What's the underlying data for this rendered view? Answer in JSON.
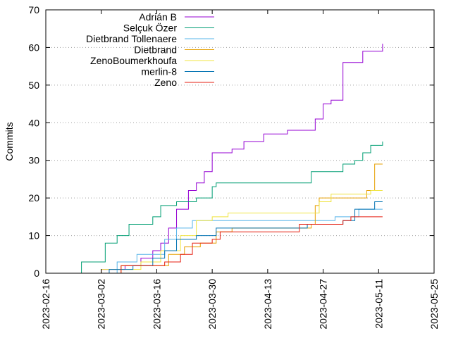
{
  "chart_data": {
    "type": "line",
    "title": "",
    "xlabel": "",
    "ylabel": "Commits",
    "ylim": [
      0,
      70
    ],
    "xlim": [
      "2023-02-16",
      "2023-05-25"
    ],
    "x_ticks": [
      "2023-02-16",
      "2023-03-02",
      "2023-03-16",
      "2023-03-30",
      "2023-04-13",
      "2023-04-27",
      "2023-05-11",
      "2023-05-25"
    ],
    "y_ticks": [
      0,
      10,
      20,
      30,
      40,
      50,
      60,
      70
    ],
    "grid": "horizontal dotted",
    "legend_position": "top-left",
    "series": [
      {
        "name": "Adrián B",
        "color": "#9400d3",
        "points": [
          [
            "2023-02-28",
            0
          ],
          [
            "2023-03-02",
            1
          ],
          [
            "2023-03-06",
            1
          ],
          [
            "2023-03-08",
            2
          ],
          [
            "2023-03-12",
            4
          ],
          [
            "2023-03-15",
            6
          ],
          [
            "2023-03-17",
            8
          ],
          [
            "2023-03-19",
            12
          ],
          [
            "2023-03-21",
            17
          ],
          [
            "2023-03-24",
            22
          ],
          [
            "2023-03-26",
            24
          ],
          [
            "2023-03-28",
            27
          ],
          [
            "2023-03-30",
            32
          ],
          [
            "2023-04-04",
            33
          ],
          [
            "2023-04-07",
            35
          ],
          [
            "2023-04-12",
            37
          ],
          [
            "2023-04-18",
            38
          ],
          [
            "2023-04-23",
            38
          ],
          [
            "2023-04-25",
            41
          ],
          [
            "2023-04-27",
            45
          ],
          [
            "2023-04-29",
            46
          ],
          [
            "2023-05-02",
            56
          ],
          [
            "2023-05-06",
            56
          ],
          [
            "2023-05-07",
            59
          ],
          [
            "2023-05-11",
            59
          ],
          [
            "2023-05-12",
            61
          ]
        ]
      },
      {
        "name": "Selçuk Özer",
        "color": "#009e73",
        "points": [
          [
            "2023-02-25",
            0
          ],
          [
            "2023-02-25",
            3
          ],
          [
            "2023-03-03",
            8
          ],
          [
            "2023-03-06",
            10
          ],
          [
            "2023-03-09",
            13
          ],
          [
            "2023-03-15",
            15
          ],
          [
            "2023-03-17",
            18
          ],
          [
            "2023-03-21",
            19
          ],
          [
            "2023-03-26",
            20
          ],
          [
            "2023-03-30",
            23
          ],
          [
            "2023-03-31",
            24
          ],
          [
            "2023-04-13",
            24
          ],
          [
            "2023-04-24",
            27
          ],
          [
            "2023-05-02",
            29
          ],
          [
            "2023-05-05",
            30
          ],
          [
            "2023-05-07",
            32
          ],
          [
            "2023-05-09",
            34
          ],
          [
            "2023-05-12",
            35
          ]
        ]
      },
      {
        "name": "Dietbrand Tollenaere",
        "color": "#56b4e9",
        "points": [
          [
            "2023-02-26",
            0
          ],
          [
            "2023-03-06",
            3
          ],
          [
            "2023-03-11",
            5
          ],
          [
            "2023-03-18",
            9
          ],
          [
            "2023-03-21",
            12
          ],
          [
            "2023-03-25",
            14
          ],
          [
            "2023-04-24",
            14
          ],
          [
            "2023-04-30",
            15
          ],
          [
            "2023-05-06",
            17
          ],
          [
            "2023-05-12",
            17
          ]
        ]
      },
      {
        "name": "Dietbrand",
        "color": "#e69f00",
        "points": [
          [
            "2023-03-02",
            0
          ],
          [
            "2023-03-07",
            2
          ],
          [
            "2023-03-16",
            2
          ],
          [
            "2023-03-19",
            5
          ],
          [
            "2023-03-23",
            7
          ],
          [
            "2023-03-27",
            8
          ],
          [
            "2023-03-31",
            11
          ],
          [
            "2023-04-04",
            12
          ],
          [
            "2023-04-24",
            13
          ],
          [
            "2023-04-25",
            18
          ],
          [
            "2023-04-26",
            20
          ],
          [
            "2023-05-06",
            20
          ],
          [
            "2023-05-08",
            22
          ],
          [
            "2023-05-10",
            29
          ],
          [
            "2023-05-12",
            29
          ]
        ]
      },
      {
        "name": "ZenoBoumerkhoufa",
        "color": "#f0e442",
        "points": [
          [
            "2023-02-27",
            0
          ],
          [
            "2023-03-02",
            1
          ],
          [
            "2023-03-12",
            3
          ],
          [
            "2023-03-17",
            6
          ],
          [
            "2023-03-22",
            10
          ],
          [
            "2023-03-26",
            14
          ],
          [
            "2023-03-30",
            15
          ],
          [
            "2023-04-03",
            16
          ],
          [
            "2023-04-24",
            16
          ],
          [
            "2023-04-26",
            19
          ],
          [
            "2023-04-29",
            21
          ],
          [
            "2023-05-09",
            22
          ],
          [
            "2023-05-12",
            22
          ]
        ]
      },
      {
        "name": "merlin-8",
        "color": "#0072b2",
        "points": [
          [
            "2023-03-02",
            0
          ],
          [
            "2023-03-04",
            1
          ],
          [
            "2023-03-10",
            2
          ],
          [
            "2023-03-15",
            4
          ],
          [
            "2023-03-18",
            6
          ],
          [
            "2023-03-21",
            9
          ],
          [
            "2023-03-26",
            10
          ],
          [
            "2023-03-31",
            12
          ],
          [
            "2023-04-20",
            12
          ],
          [
            "2023-04-23",
            13
          ],
          [
            "2023-05-02",
            14
          ],
          [
            "2023-05-05",
            17
          ],
          [
            "2023-05-10",
            19
          ],
          [
            "2023-05-12",
            19
          ]
        ]
      },
      {
        "name": "Zeno",
        "color": "#e51e10",
        "points": [
          [
            "2023-03-06",
            0
          ],
          [
            "2023-03-07",
            2
          ],
          [
            "2023-03-16",
            2
          ],
          [
            "2023-03-18",
            3
          ],
          [
            "2023-03-22",
            5
          ],
          [
            "2023-03-25",
            8
          ],
          [
            "2023-03-30",
            9
          ],
          [
            "2023-04-01",
            11
          ],
          [
            "2023-04-18",
            11
          ],
          [
            "2023-04-21",
            13
          ],
          [
            "2023-05-02",
            14
          ],
          [
            "2023-05-04",
            15
          ],
          [
            "2023-05-12",
            15
          ]
        ]
      }
    ]
  }
}
